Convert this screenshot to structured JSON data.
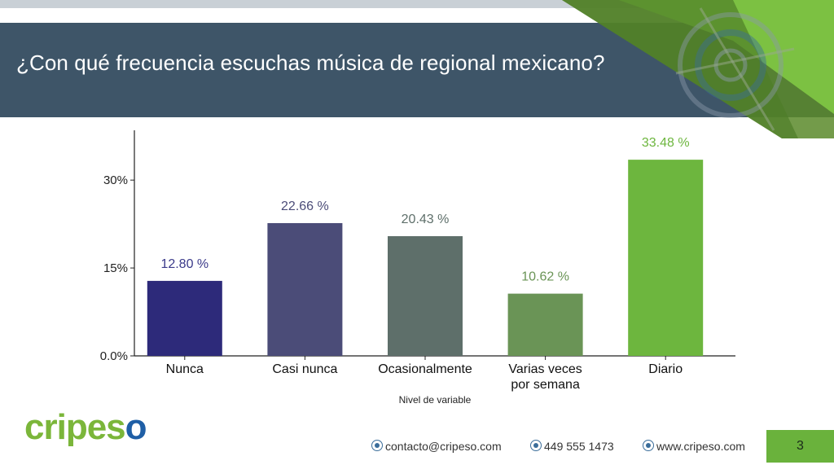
{
  "slide": {
    "title": "¿Con qué frecuencia escuchas música de regional mexicano?",
    "page_number": "3"
  },
  "footer": {
    "email": "contacto@cripeso.com",
    "phone": "449 555 1473",
    "web": "www.cripeso.com"
  },
  "logo": {
    "part1": "cripes",
    "part2": "o"
  },
  "colors": {
    "banner": "#3e5568",
    "accent_green": "#6ab23c"
  },
  "chart_data": {
    "type": "bar",
    "categories": [
      "Nunca",
      "Casi nunca",
      "Ocasionalmente",
      "Varias veces por semana",
      "Diario"
    ],
    "category_lines": [
      [
        "Nunca"
      ],
      [
        "Casi nunca"
      ],
      [
        "Ocasionalmente"
      ],
      [
        "Varias veces",
        "por semana"
      ],
      [
        "Diario"
      ]
    ],
    "values": [
      12.8,
      22.66,
      20.43,
      10.62,
      33.48
    ],
    "value_labels": [
      "12.80 %",
      "22.66 %",
      "20.43 %",
      "10.62 %",
      "33.48 %"
    ],
    "bar_colors": [
      "#2d2a7a",
      "#4b4c78",
      "#5e6f6a",
      "#6a9456",
      "#6db63e"
    ],
    "label_colors": [
      "#3b3a8a",
      "#4b4c78",
      "#5e6f6a",
      "#6a9456",
      "#6db63e"
    ],
    "xlabel": "Nivel de variable",
    "ylabel": "",
    "yticks": [
      0,
      15,
      30
    ],
    "ytick_labels": [
      "0.0%",
      "15%",
      "30%"
    ],
    "ylim": [
      0,
      38.5
    ],
    "grid": false,
    "legend": "none"
  }
}
